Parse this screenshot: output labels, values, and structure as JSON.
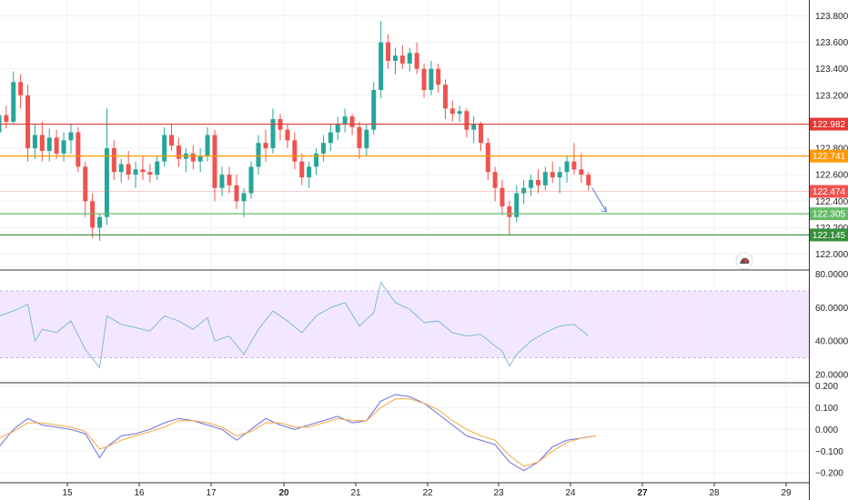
{
  "chart_data": [
    {
      "type": "candlestick",
      "pane": "price",
      "title": "",
      "y_axis_ticks": [
        "123.800",
        "123.600",
        "123.400",
        "123.200",
        "122.800",
        "122.600",
        "122.400",
        "122.200",
        "122.000"
      ],
      "ylim": [
        121.88,
        123.92
      ],
      "x_axis_dates": [
        "15",
        "16",
        "17",
        "20",
        "21",
        "22",
        "23",
        "24",
        "27",
        "28",
        "29"
      ],
      "horizontal_levels": [
        {
          "value": 122.982,
          "label": "122.982",
          "color": "#e53935"
        },
        {
          "value": 122.741,
          "label": "122.741",
          "color": "#ff9800"
        },
        {
          "value": 122.474,
          "label": "122.474",
          "color": "#ef5350"
        },
        {
          "value": 122.305,
          "label": "122.305",
          "color": "#66bb6a"
        },
        {
          "value": 122.145,
          "label": "122.145",
          "color": "#388e3c"
        }
      ],
      "forecast_arrow": {
        "from": {
          "date": "24.8",
          "value": 122.5
        },
        "to": {
          "date": "24.9",
          "value": 122.32
        },
        "color": "#5b7bd5"
      },
      "ohlc": [
        [
          0.0,
          122.92,
          123.08,
          122.88,
          123.05
        ],
        [
          0.1,
          123.05,
          123.12,
          122.95,
          123.0
        ],
        [
          0.2,
          123.0,
          123.38,
          122.98,
          123.3
        ],
        [
          0.3,
          123.3,
          123.36,
          123.1,
          123.2
        ],
        [
          0.4,
          123.2,
          123.28,
          122.7,
          122.8
        ],
        [
          0.5,
          122.8,
          122.98,
          122.72,
          122.9
        ],
        [
          0.6,
          122.9,
          123.0,
          122.7,
          122.78
        ],
        [
          0.7,
          122.78,
          122.95,
          122.7,
          122.88
        ],
        [
          0.8,
          122.88,
          122.94,
          122.72,
          122.76
        ],
        [
          0.9,
          122.76,
          122.92,
          122.7,
          122.86
        ],
        [
          1.0,
          122.86,
          122.98,
          122.76,
          122.92
        ],
        [
          1.1,
          122.92,
          122.96,
          122.62,
          122.66
        ],
        [
          1.2,
          122.66,
          122.7,
          122.28,
          122.4
        ],
        [
          1.3,
          122.4,
          122.46,
          122.12,
          122.2
        ],
        [
          1.4,
          122.2,
          122.3,
          122.1,
          122.28
        ],
        [
          1.5,
          122.28,
          123.1,
          122.22,
          122.8
        ],
        [
          1.6,
          122.8,
          122.86,
          122.56,
          122.62
        ],
        [
          1.7,
          122.62,
          122.72,
          122.54,
          122.68
        ],
        [
          1.8,
          122.68,
          122.78,
          122.56,
          122.6
        ],
        [
          1.9,
          122.6,
          122.7,
          122.5,
          122.64
        ],
        [
          2.0,
          122.64,
          122.74,
          122.56,
          122.62
        ],
        [
          2.1,
          122.62,
          122.68,
          122.54,
          122.6
        ],
        [
          2.2,
          122.6,
          122.74,
          122.56,
          122.7
        ],
        [
          2.3,
          122.7,
          122.96,
          122.66,
          122.9
        ],
        [
          2.4,
          122.9,
          122.98,
          122.78,
          122.82
        ],
        [
          2.5,
          122.82,
          122.88,
          122.66,
          122.72
        ],
        [
          2.6,
          122.72,
          122.8,
          122.62,
          122.76
        ],
        [
          2.7,
          122.76,
          122.82,
          122.64,
          122.7
        ],
        [
          2.8,
          122.7,
          122.8,
          122.62,
          122.74
        ],
        [
          2.9,
          122.74,
          122.96,
          122.7,
          122.9
        ],
        [
          3.0,
          122.9,
          122.94,
          122.4,
          122.5
        ],
        [
          3.1,
          122.5,
          122.66,
          122.44,
          122.6
        ],
        [
          3.2,
          122.6,
          122.66,
          122.46,
          122.52
        ],
        [
          3.3,
          122.52,
          122.6,
          122.34,
          122.4
        ],
        [
          3.4,
          122.4,
          122.5,
          122.28,
          122.46
        ],
        [
          3.5,
          122.46,
          122.7,
          122.42,
          122.66
        ],
        [
          3.6,
          122.66,
          122.9,
          122.6,
          122.84
        ],
        [
          3.7,
          122.84,
          122.94,
          122.7,
          122.8
        ],
        [
          3.8,
          122.8,
          123.1,
          122.76,
          123.02
        ],
        [
          3.9,
          123.02,
          123.06,
          122.86,
          122.94
        ],
        [
          4.0,
          122.94,
          122.98,
          122.8,
          122.86
        ],
        [
          4.1,
          122.86,
          122.92,
          122.64,
          122.7
        ],
        [
          4.2,
          122.7,
          122.76,
          122.52,
          122.58
        ],
        [
          4.3,
          122.58,
          122.7,
          122.5,
          122.66
        ],
        [
          4.4,
          122.66,
          122.8,
          122.6,
          122.76
        ],
        [
          4.5,
          122.76,
          122.9,
          122.7,
          122.84
        ],
        [
          4.6,
          122.84,
          122.98,
          122.78,
          122.92
        ],
        [
          4.7,
          122.92,
          123.04,
          122.86,
          122.98
        ],
        [
          4.8,
          122.98,
          123.1,
          122.92,
          123.04
        ],
        [
          4.9,
          123.04,
          123.06,
          122.9,
          122.96
        ],
        [
          5.0,
          122.96,
          123.0,
          122.72,
          122.8
        ],
        [
          5.1,
          122.8,
          122.98,
          122.74,
          122.94
        ],
        [
          5.2,
          122.94,
          123.3,
          122.9,
          123.24
        ],
        [
          5.3,
          123.24,
          123.76,
          123.18,
          123.6
        ],
        [
          5.4,
          123.6,
          123.66,
          123.4,
          123.46
        ],
        [
          5.5,
          123.46,
          123.56,
          123.36,
          123.5
        ],
        [
          5.6,
          123.5,
          123.58,
          123.4,
          123.44
        ],
        [
          5.7,
          123.44,
          123.56,
          123.38,
          123.52
        ],
        [
          5.8,
          123.52,
          123.6,
          123.36,
          123.4
        ],
        [
          5.9,
          123.4,
          123.44,
          123.18,
          123.24
        ],
        [
          6.0,
          123.24,
          123.46,
          123.2,
          123.4
        ],
        [
          6.1,
          123.4,
          123.44,
          123.22,
          123.28
        ],
        [
          6.2,
          123.28,
          123.32,
          123.02,
          123.1
        ],
        [
          6.3,
          123.1,
          123.16,
          123.0,
          123.06
        ],
        [
          6.4,
          123.06,
          123.12,
          123.0,
          123.08
        ],
        [
          6.5,
          123.08,
          123.1,
          122.88,
          122.94
        ],
        [
          6.6,
          122.94,
          123.04,
          122.84,
          122.98
        ],
        [
          6.7,
          122.98,
          123.0,
          122.78,
          122.84
        ],
        [
          6.8,
          122.84,
          122.88,
          122.56,
          122.62
        ],
        [
          6.9,
          122.62,
          122.66,
          122.4,
          122.5
        ],
        [
          7.0,
          122.5,
          122.56,
          122.3,
          122.36
        ],
        [
          7.1,
          122.36,
          122.4,
          122.15,
          122.28
        ],
        [
          7.2,
          122.28,
          122.52,
          122.24,
          122.46
        ],
        [
          7.3,
          122.46,
          122.56,
          122.38,
          122.5
        ],
        [
          7.4,
          122.5,
          122.6,
          122.44,
          122.56
        ],
        [
          7.5,
          122.56,
          122.64,
          122.46,
          122.52
        ],
        [
          7.6,
          122.52,
          122.66,
          122.48,
          122.62
        ],
        [
          7.7,
          122.62,
          122.7,
          122.54,
          122.58
        ],
        [
          7.8,
          122.58,
          122.66,
          122.46,
          122.62
        ],
        [
          7.9,
          122.62,
          122.74,
          122.54,
          122.7
        ],
        [
          8.0,
          122.7,
          122.84,
          122.6,
          122.64
        ],
        [
          8.1,
          122.64,
          122.76,
          122.54,
          122.6
        ],
        [
          8.2,
          122.6,
          122.62,
          122.48,
          122.52
        ]
      ]
    },
    {
      "type": "line",
      "pane": "oscillator-1",
      "y_axis_ticks": [
        "80.0000",
        "60.0000",
        "40.0000",
        "20.0000"
      ],
      "ylim": [
        15,
        82
      ],
      "band": [
        30,
        70
      ],
      "series": [
        {
          "color": "#7fb8d6",
          "x": [
            0,
            0.2,
            0.4,
            0.5,
            0.6,
            0.8,
            1.0,
            1.2,
            1.4,
            1.5,
            1.7,
            1.9,
            2.1,
            2.3,
            2.5,
            2.7,
            2.9,
            3.0,
            3.2,
            3.4,
            3.6,
            3.8,
            4.0,
            4.2,
            4.4,
            4.6,
            4.8,
            5.0,
            5.2,
            5.3,
            5.5,
            5.7,
            5.9,
            6.1,
            6.3,
            6.5,
            6.7,
            6.9,
            7.0,
            7.1,
            7.2,
            7.4,
            7.6,
            7.8,
            8.0,
            8.2
          ],
          "y": [
            55,
            58,
            62,
            40,
            47,
            45,
            52,
            35,
            24,
            55,
            50,
            48,
            46,
            55,
            52,
            47,
            54,
            40,
            43,
            32,
            47,
            58,
            52,
            45,
            55,
            60,
            63,
            49,
            57,
            75,
            63,
            59,
            51,
            52,
            45,
            43,
            44,
            37,
            34,
            25,
            32,
            40,
            45,
            49,
            50,
            43
          ]
        }
      ]
    },
    {
      "type": "line",
      "pane": "oscillator-2",
      "y_axis_ticks": [
        "0.200",
        "0.100",
        "0.000",
        "−0.100",
        "−0.200"
      ],
      "ylim": [
        -0.245,
        0.21
      ],
      "series": [
        {
          "color": "#6b6fe0",
          "x": [
            0,
            0.2,
            0.4,
            0.6,
            0.8,
            1.0,
            1.2,
            1.4,
            1.5,
            1.7,
            1.9,
            2.1,
            2.3,
            2.5,
            2.7,
            2.9,
            3.1,
            3.3,
            3.5,
            3.7,
            3.9,
            4.1,
            4.3,
            4.5,
            4.7,
            4.9,
            5.1,
            5.3,
            5.5,
            5.7,
            5.9,
            6.1,
            6.3,
            6.5,
            6.7,
            6.9,
            7.1,
            7.3,
            7.5,
            7.7,
            7.9,
            8.1,
            8.3
          ],
          "y": [
            -0.08,
            0.0,
            0.05,
            0.02,
            0.01,
            0.0,
            -0.02,
            -0.13,
            -0.08,
            -0.03,
            -0.02,
            0.0,
            0.03,
            0.05,
            0.04,
            0.02,
            0.0,
            -0.05,
            0.0,
            0.05,
            0.02,
            0.0,
            0.02,
            0.04,
            0.06,
            0.03,
            0.04,
            0.13,
            0.16,
            0.15,
            0.12,
            0.07,
            0.02,
            -0.03,
            -0.05,
            -0.07,
            -0.15,
            -0.19,
            -0.15,
            -0.08,
            -0.05,
            -0.04,
            -0.03
          ]
        },
        {
          "color": "#f4a742",
          "x": [
            0,
            0.2,
            0.4,
            0.6,
            0.8,
            1.0,
            1.2,
            1.4,
            1.5,
            1.7,
            1.9,
            2.1,
            2.3,
            2.5,
            2.7,
            2.9,
            3.1,
            3.3,
            3.5,
            3.7,
            3.9,
            4.1,
            4.3,
            4.5,
            4.7,
            4.9,
            5.1,
            5.3,
            5.5,
            5.7,
            5.9,
            6.1,
            6.3,
            6.5,
            6.7,
            6.9,
            7.1,
            7.3,
            7.5,
            7.7,
            7.9,
            8.1,
            8.3
          ],
          "y": [
            -0.04,
            -0.01,
            0.03,
            0.03,
            0.02,
            0.01,
            -0.01,
            -0.09,
            -0.08,
            -0.05,
            -0.03,
            -0.01,
            0.01,
            0.04,
            0.04,
            0.03,
            0.01,
            -0.03,
            -0.01,
            0.03,
            0.03,
            0.01,
            0.01,
            0.03,
            0.05,
            0.04,
            0.04,
            0.1,
            0.14,
            0.14,
            0.12,
            0.09,
            0.04,
            0.0,
            -0.03,
            -0.05,
            -0.12,
            -0.17,
            -0.15,
            -0.1,
            -0.06,
            -0.04,
            -0.03
          ]
        }
      ]
    }
  ],
  "colors": {
    "up": "#26a69a",
    "down": "#ef5350",
    "axis": "#333333",
    "band_fill": "#f3e7ff"
  },
  "icons": {
    "watermark": "tradingview-logo-icon"
  }
}
